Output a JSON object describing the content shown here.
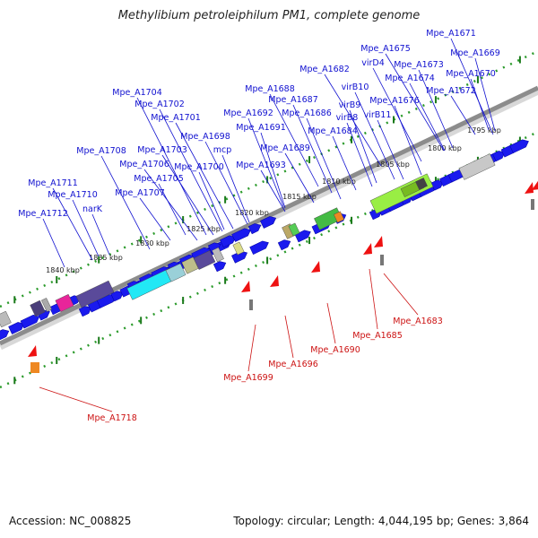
{
  "title": "Methylibium petroleiphilum PM1, complete genome",
  "footer": {
    "accession": "Accession: NC_008825",
    "summary": "Topology: circular; Length: 4,044,195 bp; Genes: 3,864"
  },
  "colors": {
    "upper_label": "#1010d0",
    "lower_label": "#cc1111",
    "backbone": "#8c8c8c",
    "dotted_track": "#2a9a2a",
    "forward_gene": "#1a1aee",
    "reverse_gene": "#ee1111"
  },
  "scale_labels": [
    {
      "text": "1795 kbp",
      "kbp": 1795
    },
    {
      "text": "1800 kbp",
      "kbp": 1800
    },
    {
      "text": "1805 kbp",
      "kbp": 1805
    },
    {
      "text": "1810 kbp",
      "kbp": 1810
    },
    {
      "text": "1815 kbp",
      "kbp": 1815
    },
    {
      "text": "1820 kbp",
      "kbp": 1820
    },
    {
      "text": "1825 kbp",
      "kbp": 1825
    },
    {
      "text": "1830 kbp",
      "kbp": 1830
    },
    {
      "text": "1835 kbp",
      "kbp": 1835
    },
    {
      "text": "1840 kbp",
      "kbp": 1840
    }
  ],
  "upper_labels": [
    {
      "text": "Mpe_A1671"
    },
    {
      "text": "Mpe_A1675"
    },
    {
      "text": "Mpe_A1669"
    },
    {
      "text": "virD4"
    },
    {
      "text": "Mpe_A1673"
    },
    {
      "text": "Mpe_A1682"
    },
    {
      "text": "Mpe_A1674"
    },
    {
      "text": "Mpe_A1670"
    },
    {
      "text": "virB10"
    },
    {
      "text": "Mpe_A1688"
    },
    {
      "text": "Mpe_A1672"
    },
    {
      "text": "Mpe_A1704"
    },
    {
      "text": "Mpe_A1687"
    },
    {
      "text": "Mpe_A1676"
    },
    {
      "text": "virB9"
    },
    {
      "text": "Mpe_A1702"
    },
    {
      "text": "Mpe_A1692"
    },
    {
      "text": "Mpe_A1686"
    },
    {
      "text": "virB8"
    },
    {
      "text": "virB11"
    },
    {
      "text": "Mpe_A1701"
    },
    {
      "text": "Mpe_A1691"
    },
    {
      "text": "Mpe_A1684"
    },
    {
      "text": "Mpe_A1698"
    },
    {
      "text": "Mpe_A1708"
    },
    {
      "text": "Mpe_A1703"
    },
    {
      "text": "mcp"
    },
    {
      "text": "Mpe_A1689"
    },
    {
      "text": "Mpe_A1706"
    },
    {
      "text": "Mpe_A1700"
    },
    {
      "text": "Mpe_A1693"
    },
    {
      "text": "Mpe_A1705"
    },
    {
      "text": "Mpe_A1711"
    },
    {
      "text": "Mpe_A1707"
    },
    {
      "text": "Mpe_A1710"
    },
    {
      "text": "narK"
    },
    {
      "text": "Mpe_A1712"
    }
  ],
  "lower_labels": [
    {
      "text": "Mpe_A1683"
    },
    {
      "text": "Mpe_A1685"
    },
    {
      "text": "Mpe_A1690"
    },
    {
      "text": "Mpe_A1696"
    },
    {
      "text": "Mpe_A1699"
    },
    {
      "text": "Mpe_A1718"
    }
  ]
}
